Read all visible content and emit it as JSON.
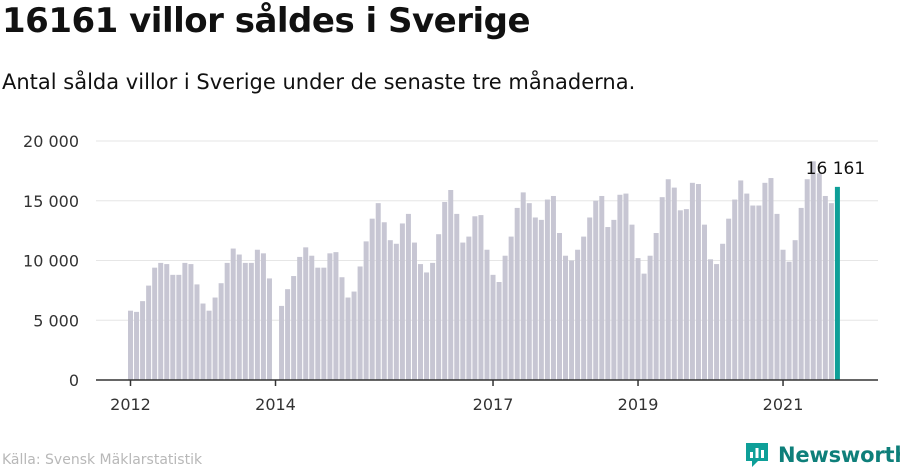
{
  "title": "16161 villor såldes i Sverige",
  "subtitle": "Antal sålda villor i Sverige under de senaste tre månaderna.",
  "source": "Källa: Svensk Mäklarstatistik",
  "brand": {
    "name": "Newsworthy",
    "icon": "newsworthy-chart-icon",
    "color": "#0e7f7a"
  },
  "chart_data": {
    "type": "bar",
    "highlight_label": "16 161",
    "ylim": [
      0,
      20000
    ],
    "yticks": [
      0,
      5000,
      10000,
      15000,
      20000
    ],
    "ytick_labels": [
      "0",
      "5 000",
      "10 000",
      "15 000",
      "20 000"
    ],
    "xtick_labels": [
      {
        "label": "2012",
        "index": 0
      },
      {
        "label": "2014",
        "index": 24
      },
      {
        "label": "2017",
        "index": 60
      },
      {
        "label": "2019",
        "index": 84
      },
      {
        "label": "2021",
        "index": 108
      }
    ],
    "colors": {
      "bar": "#c7c6d3",
      "highlight": "#0e9f98"
    },
    "values": [
      5800,
      5700,
      6600,
      7900,
      9400,
      9800,
      9700,
      8800,
      8800,
      9800,
      9700,
      8000,
      6400,
      5800,
      6900,
      8100,
      9800,
      11000,
      10500,
      9800,
      9800,
      10900,
      10600,
      8500,
      null,
      6200,
      7600,
      8700,
      10300,
      11100,
      10400,
      9400,
      9400,
      10600,
      10700,
      8600,
      6900,
      7400,
      9500,
      11600,
      13500,
      14800,
      13200,
      11700,
      11400,
      13100,
      13900,
      11500,
      9700,
      9000,
      9800,
      12200,
      14900,
      15900,
      13900,
      11500,
      12000,
      13700,
      13800,
      10900,
      8800,
      8200,
      10400,
      12000,
      14400,
      15700,
      14800,
      13600,
      13400,
      15100,
      15400,
      12300,
      10400,
      10000,
      10900,
      12000,
      13600,
      15000,
      15400,
      12800,
      13400,
      15500,
      15600,
      13000,
      10200,
      8900,
      10400,
      12300,
      15300,
      16800,
      16100,
      14200,
      14300,
      16500,
      16400,
      13000,
      10100,
      9700,
      11400,
      13500,
      15100,
      16700,
      15600,
      14600,
      14600,
      16500,
      16900,
      13900,
      10900,
      9900,
      11700,
      14400,
      16800,
      18300,
      17300,
      15400,
      14800,
      16161
    ]
  }
}
